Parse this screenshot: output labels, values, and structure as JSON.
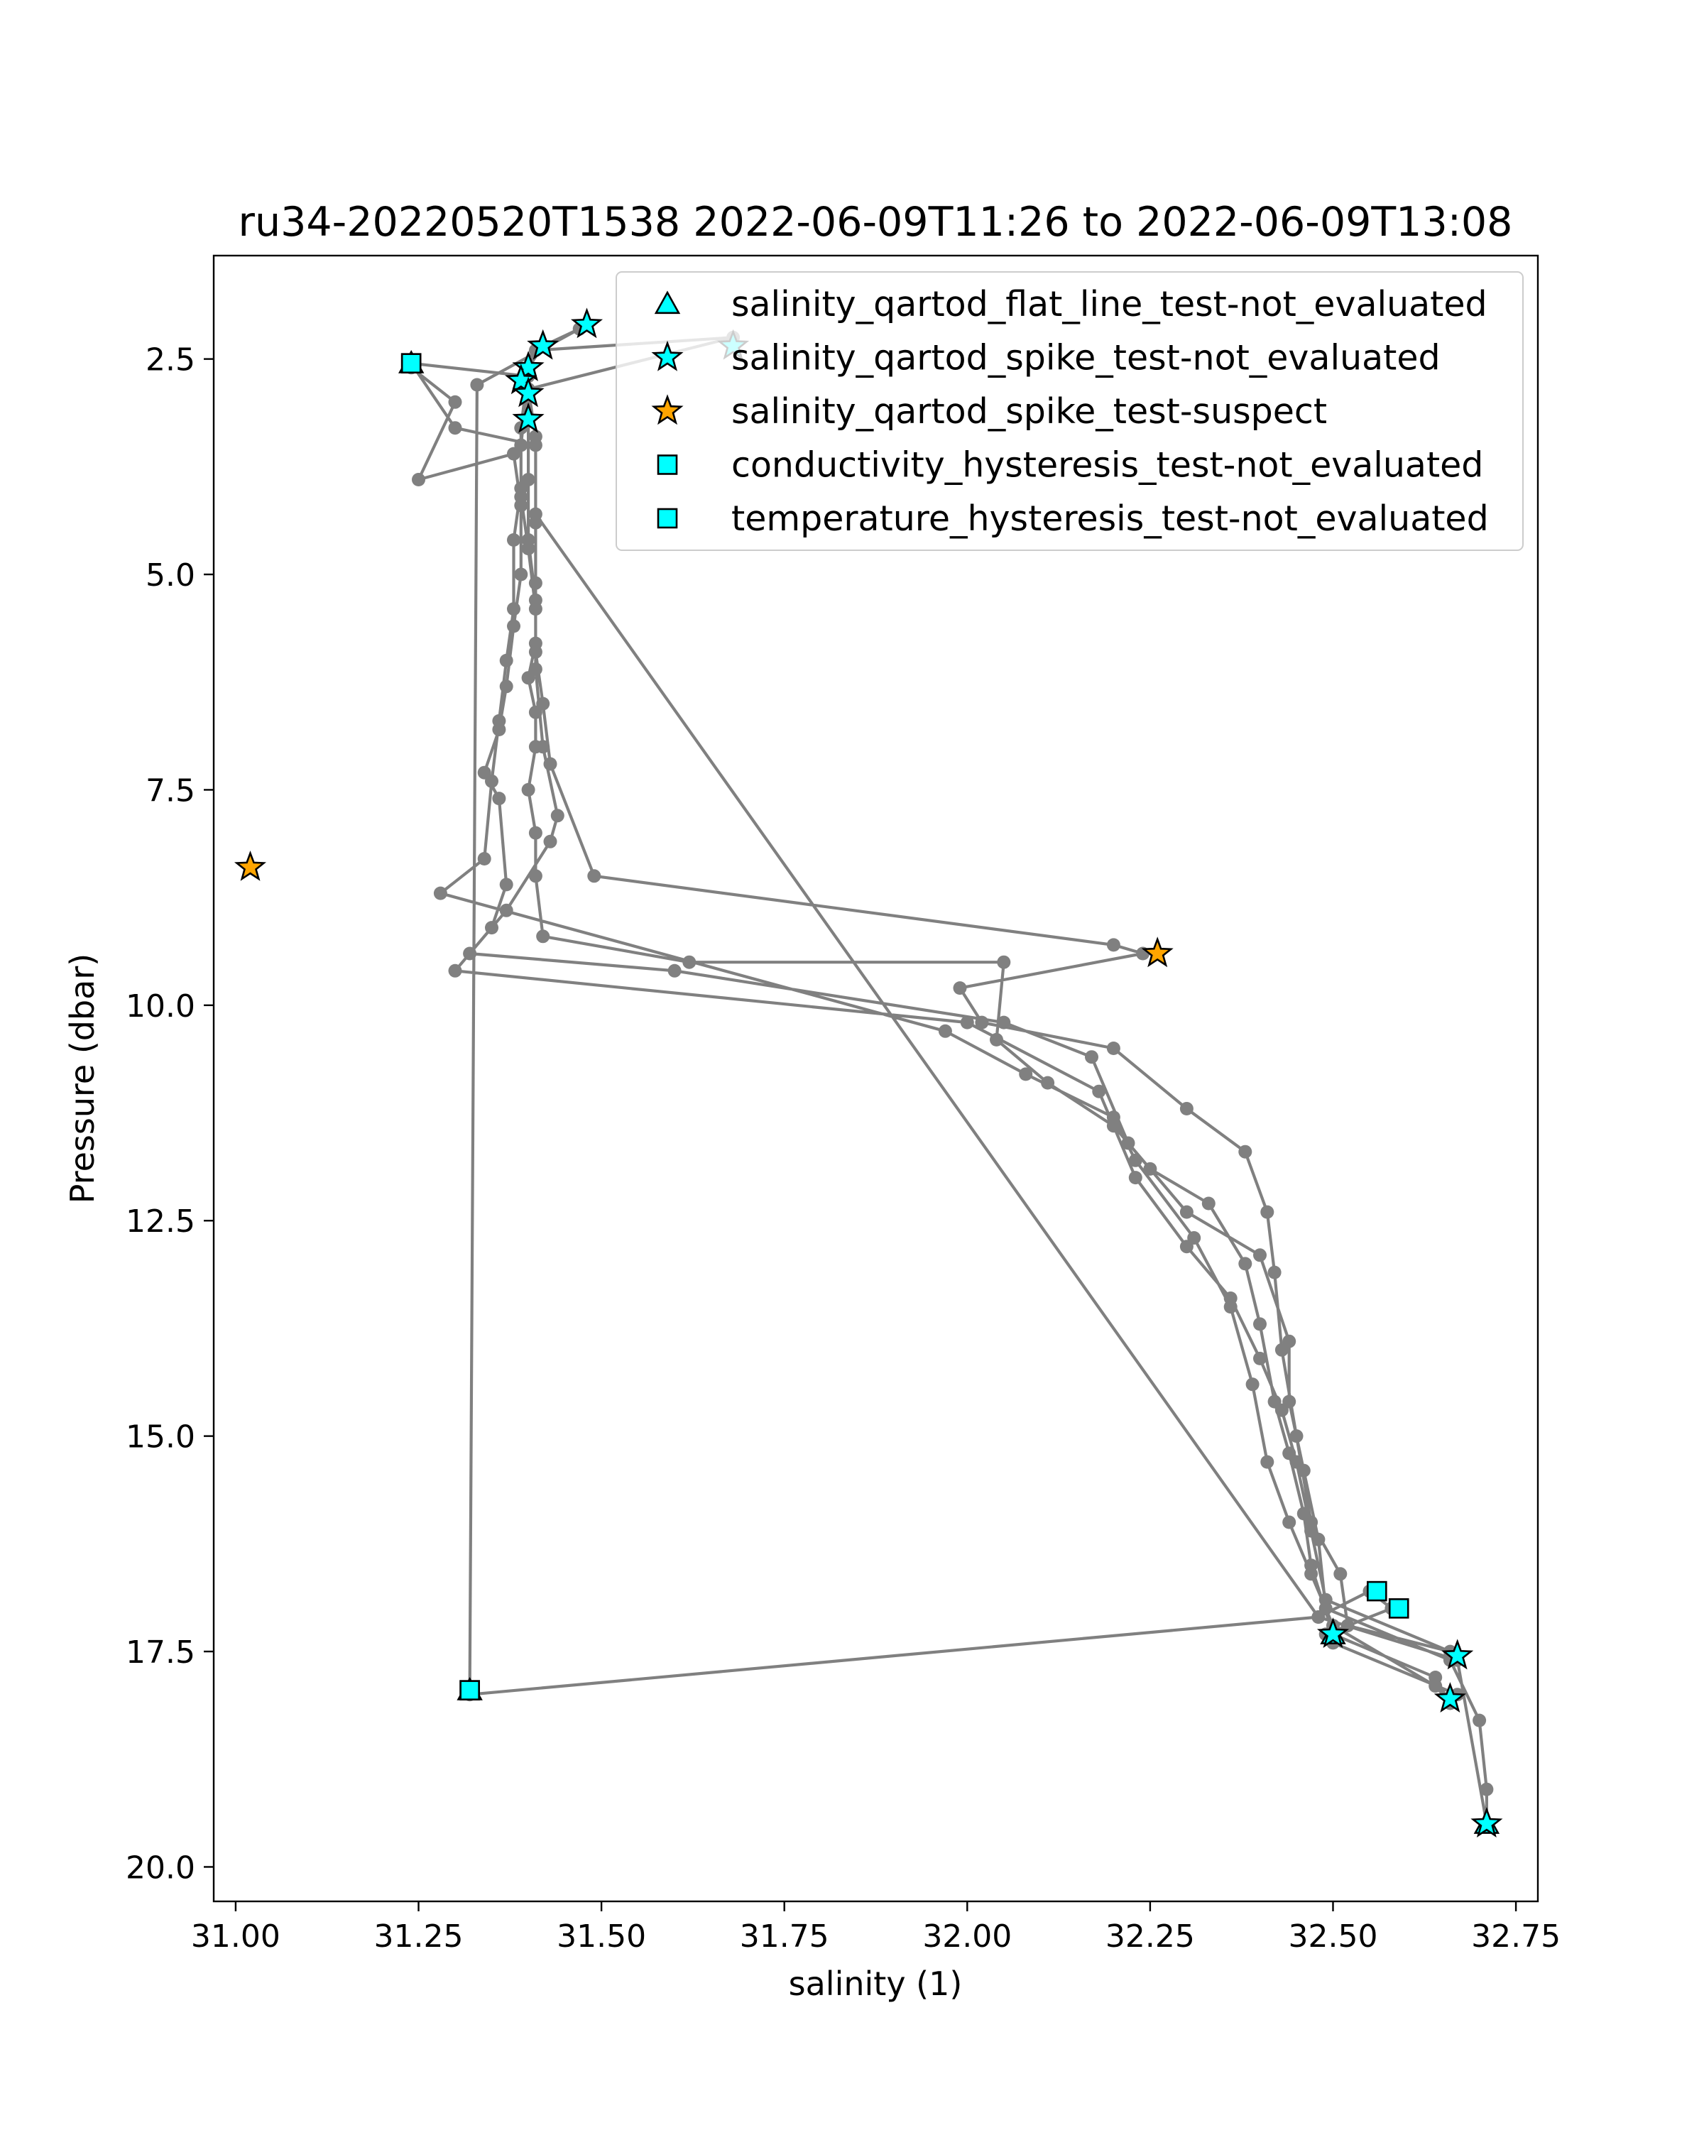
{
  "chart_data": {
    "type": "scatter",
    "title": "ru34-20220520T1538 2022-06-09T11:26 to 2022-06-09T13:08",
    "xlabel": "salinity (1)",
    "ylabel": "Pressure (dbar)",
    "xlim": [
      30.97,
      32.78
    ],
    "ylim": [
      20.4,
      1.3
    ],
    "y_inverted": true,
    "xticks": [
      "31.00",
      "31.25",
      "31.50",
      "31.75",
      "32.00",
      "32.25",
      "32.50",
      "32.75"
    ],
    "yticks": [
      "2.5",
      "5.0",
      "7.5",
      "10.0",
      "12.5",
      "15.0",
      "17.5",
      "20.0"
    ],
    "legend_position": "upper right",
    "colors": {
      "profile": "#808080",
      "flag_cyan": "#00ffff",
      "flag_orange": "#ffa500"
    },
    "profile_line": [
      [
        31.24,
        2.6
      ],
      [
        31.3,
        3.0
      ],
      [
        31.25,
        3.9
      ],
      [
        31.38,
        3.6
      ],
      [
        31.39,
        4.2
      ],
      [
        31.39,
        5.0
      ],
      [
        31.38,
        5.6
      ],
      [
        31.37,
        6.3
      ],
      [
        31.36,
        6.8
      ],
      [
        31.34,
        7.3
      ],
      [
        31.36,
        7.6
      ],
      [
        31.37,
        8.6
      ],
      [
        31.35,
        9.1
      ],
      [
        31.32,
        9.4
      ],
      [
        31.6,
        9.6
      ],
      [
        32.05,
        10.2
      ],
      [
        32.17,
        10.6
      ],
      [
        32.22,
        11.6
      ],
      [
        32.3,
        12.4
      ],
      [
        32.4,
        12.9
      ],
      [
        32.44,
        13.9
      ],
      [
        32.44,
        14.6
      ],
      [
        32.46,
        15.4
      ],
      [
        32.48,
        16.2
      ],
      [
        32.49,
        17.0
      ],
      [
        32.66,
        17.6
      ],
      [
        32.7,
        18.3
      ],
      [
        32.71,
        19.1
      ],
      [
        32.71,
        19.5
      ],
      [
        32.67,
        17.6
      ],
      [
        32.48,
        17.1
      ],
      [
        31.32,
        18.0
      ],
      [
        31.33,
        2.8
      ],
      [
        31.47,
        2.15
      ],
      [
        31.42,
        2.35
      ],
      [
        31.4,
        2.6
      ],
      [
        31.4,
        2.85
      ],
      [
        31.4,
        3.2
      ],
      [
        31.4,
        3.9
      ],
      [
        31.4,
        4.6
      ],
      [
        31.41,
        5.3
      ],
      [
        31.41,
        5.8
      ],
      [
        31.4,
        6.2
      ],
      [
        31.41,
        6.6
      ],
      [
        31.41,
        7.0
      ],
      [
        31.4,
        7.5
      ],
      [
        31.41,
        8.0
      ],
      [
        31.41,
        8.5
      ],
      [
        31.42,
        9.2
      ],
      [
        31.62,
        9.5
      ],
      [
        32.05,
        9.5
      ],
      [
        32.04,
        10.4
      ],
      [
        32.11,
        10.9
      ],
      [
        32.2,
        11.4
      ],
      [
        32.25,
        11.9
      ],
      [
        32.33,
        12.3
      ],
      [
        32.38,
        13.0
      ],
      [
        32.4,
        13.7
      ],
      [
        32.42,
        14.6
      ],
      [
        32.44,
        15.2
      ],
      [
        32.46,
        15.9
      ],
      [
        32.47,
        16.5
      ],
      [
        32.5,
        17.3
      ],
      [
        32.64,
        17.8
      ],
      [
        32.66,
        18.1
      ],
      [
        32.64,
        17.9
      ],
      [
        32.5,
        17.2
      ],
      [
        32.47,
        16.6
      ],
      [
        32.44,
        16.0
      ],
      [
        32.41,
        15.3
      ],
      [
        32.39,
        14.4
      ],
      [
        32.36,
        13.5
      ],
      [
        32.31,
        12.7
      ],
      [
        32.23,
        11.8
      ],
      [
        32.2,
        11.3
      ],
      [
        32.08,
        10.8
      ],
      [
        31.97,
        10.3
      ],
      [
        31.28,
        8.7
      ],
      [
        31.34,
        8.3
      ],
      [
        31.35,
        7.4
      ],
      [
        31.36,
        6.7
      ],
      [
        31.37,
        6.0
      ],
      [
        31.38,
        5.4
      ],
      [
        31.38,
        4.6
      ],
      [
        31.39,
        4.0
      ],
      [
        31.39,
        3.3
      ],
      [
        31.4,
        2.6
      ],
      [
        31.41,
        2.4
      ],
      [
        31.68,
        2.25
      ],
      [
        31.4,
        2.85
      ],
      [
        31.41,
        3.4
      ],
      [
        31.41,
        4.4
      ],
      [
        31.41,
        5.1
      ],
      [
        31.41,
        5.9
      ],
      [
        31.42,
        6.5
      ],
      [
        31.43,
        7.2
      ],
      [
        31.49,
        8.5
      ],
      [
        32.2,
        9.3
      ],
      [
        32.24,
        9.4
      ],
      [
        31.99,
        9.8
      ],
      [
        32.02,
        10.2
      ],
      [
        32.2,
        10.5
      ],
      [
        32.3,
        11.2
      ],
      [
        32.38,
        11.7
      ],
      [
        32.41,
        12.4
      ],
      [
        32.42,
        13.1
      ],
      [
        32.43,
        14.0
      ],
      [
        32.45,
        15.0
      ],
      [
        32.47,
        16.0
      ],
      [
        32.51,
        16.6
      ],
      [
        32.52,
        17.2
      ],
      [
        32.66,
        17.5
      ],
      [
        32.49,
        16.9
      ],
      [
        32.47,
        16.1
      ],
      [
        32.45,
        15.3
      ],
      [
        32.43,
        14.7
      ],
      [
        32.4,
        14.1
      ],
      [
        32.36,
        13.4
      ],
      [
        32.3,
        12.8
      ],
      [
        32.23,
        12.0
      ],
      [
        32.18,
        11.0
      ],
      [
        32.0,
        10.2
      ],
      [
        31.3,
        9.6
      ],
      [
        31.37,
        8.9
      ],
      [
        31.43,
        8.1
      ],
      [
        31.44,
        7.8
      ],
      [
        31.42,
        7.0
      ],
      [
        31.41,
        6.1
      ],
      [
        31.41,
        5.4
      ],
      [
        31.4,
        4.7
      ],
      [
        31.39,
        4.1
      ],
      [
        31.39,
        3.5
      ],
      [
        31.4,
        2.7
      ],
      [
        31.24,
        2.55
      ],
      [
        31.3,
        3.3
      ],
      [
        31.41,
        3.5
      ],
      [
        31.41,
        4.3
      ],
      [
        32.48,
        17.1
      ],
      [
        32.55,
        16.8
      ],
      [
        32.58,
        17.0
      ],
      [
        32.49,
        17.3
      ],
      [
        32.5,
        17.4
      ],
      [
        32.67,
        18.0
      ],
      [
        32.66,
        18.1
      ]
    ],
    "series": [
      {
        "name": "salinity_qartod_flat_line_test-not_evaluated",
        "marker": "triangle",
        "color": "#00ffff",
        "points": [
          [
            31.24,
            2.55
          ],
          [
            31.32,
            17.95
          ],
          [
            32.5,
            17.3
          ],
          [
            32.71,
            19.5
          ]
        ]
      },
      {
        "name": "salinity_qartod_spike_test-not_evaluated",
        "marker": "star",
        "color": "#00ffff",
        "points": [
          [
            31.48,
            2.1
          ],
          [
            31.42,
            2.35
          ],
          [
            31.68,
            2.35
          ],
          [
            31.4,
            2.6
          ],
          [
            31.39,
            2.75
          ],
          [
            31.4,
            2.9
          ],
          [
            31.4,
            3.2
          ],
          [
            32.5,
            17.3
          ],
          [
            32.67,
            17.55
          ],
          [
            32.66,
            18.05
          ],
          [
            32.71,
            19.5
          ]
        ]
      },
      {
        "name": "salinity_qartod_spike_test-suspect",
        "marker": "star",
        "color": "#ffa500",
        "points": [
          [
            31.02,
            8.4
          ],
          [
            32.26,
            9.4
          ]
        ]
      },
      {
        "name": "conductivity_hysteresis_test-not_evaluated",
        "marker": "square",
        "color": "#00ffff",
        "points": [
          [
            31.24,
            2.55
          ],
          [
            31.32,
            17.95
          ],
          [
            32.56,
            16.8
          ],
          [
            32.59,
            17.0
          ]
        ]
      },
      {
        "name": "temperature_hysteresis_test-not_evaluated",
        "marker": "square",
        "color": "#00ffff",
        "points": [
          [
            31.24,
            2.55
          ],
          [
            31.32,
            17.95
          ]
        ]
      }
    ]
  }
}
